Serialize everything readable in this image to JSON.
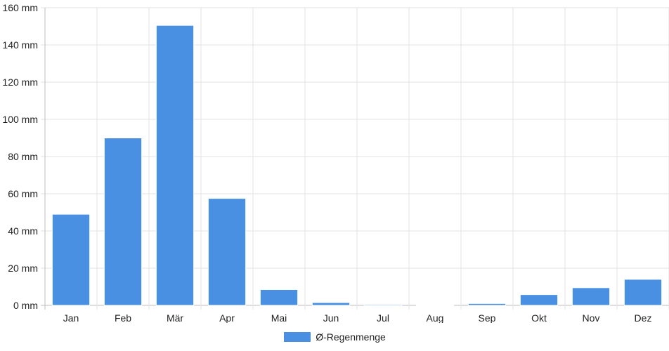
{
  "chart_data": {
    "type": "bar",
    "categories": [
      "Jan",
      "Feb",
      "Mär",
      "Apr",
      "Mai",
      "Jun",
      "Jul",
      "Aug",
      "Sep",
      "Okt",
      "Nov",
      "Dez"
    ],
    "series": [
      {
        "name": "Ø-Regenmenge",
        "values": [
          49,
          90,
          150.5,
          57.5,
          8.5,
          1.5,
          0.5,
          0.3,
          1,
          5.8,
          9.5,
          14
        ]
      }
    ],
    "ylim": [
      0,
      160
    ],
    "y_ticks": [
      "0 mm",
      "20 mm",
      "40 mm",
      "60 mm",
      "80 mm",
      "100 mm",
      "120 mm",
      "140 mm",
      "160 mm"
    ],
    "y_unit": "mm",
    "grid": true,
    "legend_position": "bottom",
    "bar_color": "#4a90e2"
  }
}
